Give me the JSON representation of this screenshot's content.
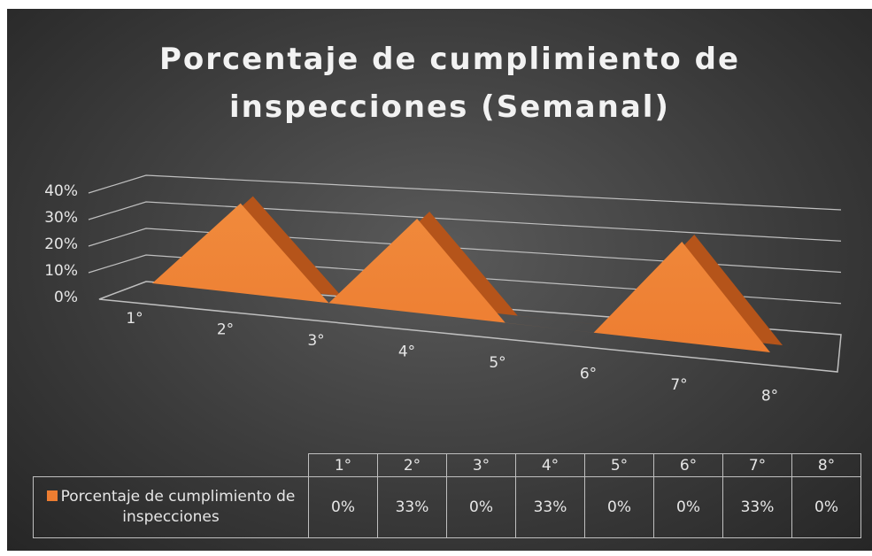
{
  "chart_data": {
    "type": "area3d",
    "title": "Porcentaje de cumplimiento  de inspecciones (Semanal)",
    "categories": [
      "1°",
      "2°",
      "3°",
      "4°",
      "5°",
      "6°",
      "7°",
      "8°"
    ],
    "series": [
      {
        "name": "Porcentaje de cumplimiento de inspecciones",
        "color": "#ed7d31",
        "values": [
          0,
          33,
          0,
          33,
          0,
          0,
          33,
          0
        ],
        "value_labels": [
          "0%",
          "33%",
          "0%",
          "33%",
          "0%",
          "0%",
          "33%",
          "0%"
        ]
      }
    ],
    "ylim": [
      0,
      40
    ],
    "yticks": [
      {
        "value": 0,
        "label": "0%"
      },
      {
        "value": 10,
        "label": "10%"
      },
      {
        "value": 20,
        "label": "20%"
      },
      {
        "value": 30,
        "label": "30%"
      },
      {
        "value": 40,
        "label": "40%"
      }
    ],
    "grid": true,
    "data_table": true
  }
}
